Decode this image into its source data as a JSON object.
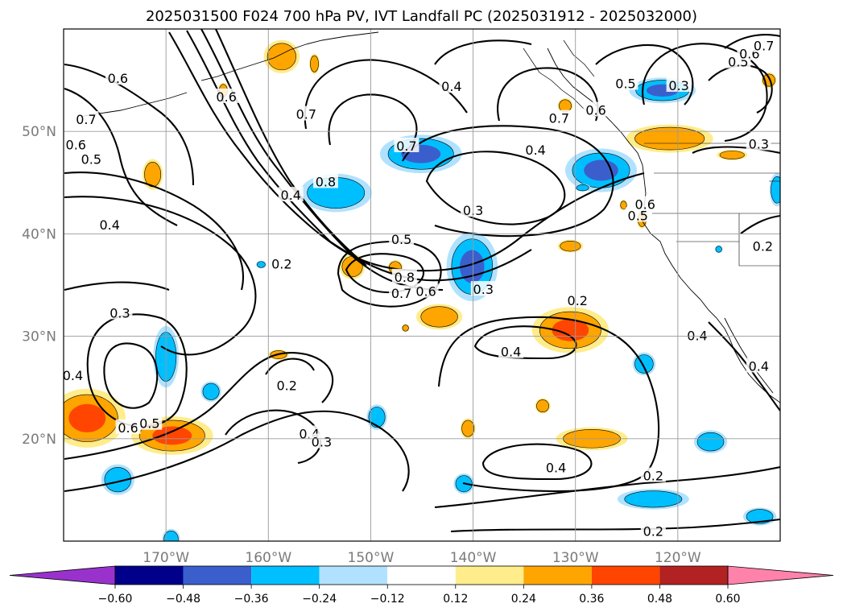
{
  "title": "2025031500 F024 700 hPa PV, IVT Landfall PC (2025031912 - 2025032000)",
  "chart_data": {
    "type": "contour map",
    "title": "2025031500 F024 700 hPa PV, IVT Landfall PC (2025031912 - 2025032000)",
    "lon_range": [
      -180,
      -110
    ],
    "lat_range": [
      10,
      60
    ],
    "lon_ticks": [
      -170,
      -160,
      -150,
      -140,
      -130,
      -120
    ],
    "lon_tick_labels": [
      "170°W",
      "160°W",
      "150°W",
      "140°W",
      "130°W",
      "120°W"
    ],
    "lat_ticks": [
      20,
      30,
      40,
      50
    ],
    "lat_tick_labels": [
      "20°N",
      "30°N",
      "40°N",
      "50°N"
    ],
    "grid": true,
    "colorbar": {
      "orientation": "horizontal",
      "extend": "both",
      "levels": [
        -0.6,
        -0.48,
        -0.36,
        -0.24,
        -0.12,
        0.12,
        0.24,
        0.36,
        0.48,
        0.6
      ],
      "tick_labels": [
        "−0.60",
        "−0.48",
        "−0.36",
        "−0.24",
        "−0.12",
        "0.12",
        "0.24",
        "0.36",
        "0.48",
        "0.60"
      ],
      "colors": [
        "#9932cc",
        "#00008b",
        "#3a5fcd",
        "#00bfff",
        "#b0e2ff",
        "#ffffff",
        "#ffec8b",
        "#ffa500",
        "#ff4500",
        "#b22222",
        "#ff82ab"
      ]
    },
    "contour_labels": [
      {
        "text": "0.6",
        "lon": -174.7,
        "lat": 55.2
      },
      {
        "text": "0.7",
        "lon": -177.8,
        "lat": 51.2
      },
      {
        "text": "0.6",
        "lon": -178.8,
        "lat": 48.7
      },
      {
        "text": "0.5",
        "lon": -177.3,
        "lat": 47.3
      },
      {
        "text": "0.4",
        "lon": -175.5,
        "lat": 40.9
      },
      {
        "text": "0.3",
        "lon": -174.5,
        "lat": 32.3
      },
      {
        "text": "0.4",
        "lon": -179.1,
        "lat": 26.2
      },
      {
        "text": "0.6",
        "lon": -173.7,
        "lat": 21.1
      },
      {
        "text": "0.5",
        "lon": -171.6,
        "lat": 21.5
      },
      {
        "text": "0.6",
        "lon": -164.1,
        "lat": 53.4
      },
      {
        "text": "0.7",
        "lon": -156.3,
        "lat": 51.7
      },
      {
        "text": "0.4",
        "lon": -157.8,
        "lat": 43.8
      },
      {
        "text": "0.2",
        "lon": -158.7,
        "lat": 37.1
      },
      {
        "text": "0.8",
        "lon": -154.4,
        "lat": 45.1
      },
      {
        "text": "0.7",
        "lon": -146.5,
        "lat": 48.6
      },
      {
        "text": "0.5",
        "lon": -147.0,
        "lat": 39.5
      },
      {
        "text": "0.8",
        "lon": -146.7,
        "lat": 35.8
      },
      {
        "text": "0.7",
        "lon": -147.0,
        "lat": 34.2
      },
      {
        "text": "0.6",
        "lon": -144.6,
        "lat": 34.4
      },
      {
        "text": "0.4",
        "lon": -142.1,
        "lat": 54.4
      },
      {
        "text": "0.4",
        "lon": -133.9,
        "lat": 48.2
      },
      {
        "text": "0.3",
        "lon": -140.0,
        "lat": 42.3
      },
      {
        "text": "0.7",
        "lon": -131.6,
        "lat": 51.3
      },
      {
        "text": "0.5",
        "lon": -125.1,
        "lat": 54.7
      },
      {
        "text": "0.6",
        "lon": -128.0,
        "lat": 52.1
      },
      {
        "text": "0.3",
        "lon": -139.0,
        "lat": 34.6
      },
      {
        "text": "0.5",
        "lon": -123.9,
        "lat": 41.8
      },
      {
        "text": "0.6",
        "lon": -123.2,
        "lat": 42.9
      },
      {
        "text": "0.2",
        "lon": -129.8,
        "lat": 33.5
      },
      {
        "text": "0.4",
        "lon": -136.3,
        "lat": 28.5
      },
      {
        "text": "0.2",
        "lon": -158.2,
        "lat": 25.2
      },
      {
        "text": "0.4",
        "lon": -156.0,
        "lat": 20.5
      },
      {
        "text": "0.3",
        "lon": -154.8,
        "lat": 19.7
      },
      {
        "text": "0.4",
        "lon": -131.9,
        "lat": 17.2
      },
      {
        "text": "0.2",
        "lon": -122.4,
        "lat": 16.4
      },
      {
        "text": "0.2",
        "lon": -122.4,
        "lat": 11.0
      },
      {
        "text": "0.3",
        "lon": -119.9,
        "lat": 54.5
      },
      {
        "text": "0.3",
        "lon": -112.1,
        "lat": 48.8
      },
      {
        "text": "0.5",
        "lon": -114.1,
        "lat": 56.8
      },
      {
        "text": "0.6",
        "lon": -113.0,
        "lat": 57.6
      },
      {
        "text": "0.7",
        "lon": -111.6,
        "lat": 58.4
      },
      {
        "text": "0.2",
        "lon": -111.7,
        "lat": 38.8
      },
      {
        "text": "0.4",
        "lon": -118.1,
        "lat": 30.1
      },
      {
        "text": "0.4",
        "lon": -112.1,
        "lat": 27.1
      }
    ],
    "shaded_features": [
      {
        "sign": "positive",
        "level": 0.36,
        "lon": -177.7,
        "lat": 22.0,
        "rlon": 3.0,
        "rlat": 2.3
      },
      {
        "sign": "positive",
        "level": 0.36,
        "lon": -169.4,
        "lat": 20.3,
        "rlon": 3.2,
        "rlat": 1.5
      },
      {
        "sign": "positive",
        "level": 0.36,
        "lon": -130.5,
        "lat": 30.6,
        "rlon": 3.0,
        "rlat": 1.8
      },
      {
        "sign": "positive",
        "level": 0.24,
        "lon": -158.7,
        "lat": 57.3,
        "rlon": 1.4,
        "rlat": 1.3
      },
      {
        "sign": "positive",
        "level": 0.24,
        "lon": -151.8,
        "lat": 36.8,
        "rlon": 1.0,
        "rlat": 1.0
      },
      {
        "sign": "positive",
        "level": 0.24,
        "lon": -143.3,
        "lat": 31.9,
        "rlon": 1.8,
        "rlat": 1.0
      },
      {
        "sign": "positive",
        "level": 0.24,
        "lon": -128.4,
        "lat": 20.0,
        "rlon": 2.8,
        "rlat": 0.9
      },
      {
        "sign": "positive",
        "level": 0.24,
        "lon": -120.8,
        "lat": 49.3,
        "rlon": 3.4,
        "rlat": 1.1
      },
      {
        "sign": "positive",
        "level": 0.24,
        "lon": -130.5,
        "lat": 38.8,
        "rlon": 1.0,
        "rlat": 0.5
      },
      {
        "sign": "positive",
        "level": 0.24,
        "lon": -164.4,
        "lat": 54.0,
        "rlon": 0.4,
        "rlat": 0.6
      },
      {
        "sign": "positive",
        "level": 0.24,
        "lon": -140.5,
        "lat": 21.0,
        "rlon": 0.6,
        "rlat": 0.8
      },
      {
        "sign": "positive",
        "level": 0.24,
        "lon": -171.3,
        "lat": 45.8,
        "rlon": 0.8,
        "rlat": 1.2
      },
      {
        "sign": "positive",
        "level": 0.24,
        "lon": -159.0,
        "lat": 28.2,
        "rlon": 0.8,
        "rlat": 0.4
      },
      {
        "sign": "positive",
        "level": 0.24,
        "lon": -146.6,
        "lat": 30.8,
        "rlon": 0.3,
        "rlat": 0.3
      },
      {
        "sign": "positive",
        "level": 0.24,
        "lon": -147.6,
        "lat": 36.7,
        "rlon": 0.6,
        "rlat": 0.6
      },
      {
        "sign": "positive",
        "level": 0.24,
        "lon": -125.3,
        "lat": 42.8,
        "rlon": 0.3,
        "rlat": 0.4
      },
      {
        "sign": "positive",
        "level": 0.24,
        "lon": -114.7,
        "lat": 47.7,
        "rlon": 1.2,
        "rlat": 0.4
      },
      {
        "sign": "positive",
        "level": 0.24,
        "lon": -123.5,
        "lat": 41.4,
        "rlon": 0.4,
        "rlat": 0.7
      },
      {
        "sign": "positive",
        "level": 0.24,
        "lon": -133.2,
        "lat": 23.2,
        "rlon": 0.6,
        "rlat": 0.6
      },
      {
        "sign": "positive",
        "level": 0.24,
        "lon": -155.5,
        "lat": 56.6,
        "rlon": 0.4,
        "rlat": 0.8
      },
      {
        "sign": "positive",
        "level": 0.24,
        "lon": -111.1,
        "lat": 55.0,
        "rlon": 0.6,
        "rlat": 0.6
      },
      {
        "sign": "positive",
        "level": 0.24,
        "lon": -131.0,
        "lat": 52.5,
        "rlon": 0.6,
        "rlat": 0.6
      },
      {
        "sign": "negative",
        "level": -0.36,
        "lon": -140.1,
        "lat": 36.8,
        "rlon": 2.0,
        "rlat": 2.7
      },
      {
        "sign": "negative",
        "level": -0.36,
        "lon": -145.1,
        "lat": 47.8,
        "rlon": 3.2,
        "rlat": 1.5
      },
      {
        "sign": "negative",
        "level": -0.36,
        "lon": -127.5,
        "lat": 46.2,
        "rlon": 2.8,
        "rlat": 1.7
      },
      {
        "sign": "negative",
        "level": -0.36,
        "lon": -121.5,
        "lat": 54.0,
        "rlon": 2.6,
        "rlat": 1.0
      },
      {
        "sign": "negative",
        "level": -0.24,
        "lon": -153.4,
        "lat": 44.0,
        "rlon": 2.8,
        "rlat": 1.5
      },
      {
        "sign": "negative",
        "level": -0.24,
        "lon": -170.0,
        "lat": 28.0,
        "rlon": 1.0,
        "rlat": 2.4
      },
      {
        "sign": "negative",
        "level": -0.24,
        "lon": -165.6,
        "lat": 24.6,
        "rlon": 0.8,
        "rlat": 0.8
      },
      {
        "sign": "negative",
        "level": -0.24,
        "lon": -174.7,
        "lat": 16.0,
        "rlon": 1.3,
        "rlat": 1.2
      },
      {
        "sign": "negative",
        "level": -0.24,
        "lon": -149.4,
        "lat": 22.1,
        "rlon": 0.8,
        "rlat": 1.0
      },
      {
        "sign": "negative",
        "level": -0.24,
        "lon": -140.9,
        "lat": 15.6,
        "rlon": 0.8,
        "rlat": 0.8
      },
      {
        "sign": "negative",
        "level": -0.24,
        "lon": -123.3,
        "lat": 27.3,
        "rlon": 0.9,
        "rlat": 0.9
      },
      {
        "sign": "negative",
        "level": -0.24,
        "lon": -122.4,
        "lat": 14.1,
        "rlon": 2.8,
        "rlat": 0.8
      },
      {
        "sign": "negative",
        "level": -0.24,
        "lon": -116.8,
        "lat": 19.7,
        "rlon": 1.3,
        "rlat": 0.9
      },
      {
        "sign": "negative",
        "level": -0.24,
        "lon": -112.0,
        "lat": 12.4,
        "rlon": 1.3,
        "rlat": 0.7
      },
      {
        "sign": "negative",
        "level": -0.24,
        "lon": -110.3,
        "lat": 44.3,
        "rlon": 0.6,
        "rlat": 1.3
      },
      {
        "sign": "negative",
        "level": -0.24,
        "lon": -169.5,
        "lat": 10.2,
        "rlon": 0.7,
        "rlat": 0.8
      },
      {
        "sign": "negative",
        "level": -0.24,
        "lon": -160.7,
        "lat": 37.0,
        "rlon": 0.4,
        "rlat": 0.3
      },
      {
        "sign": "negative",
        "level": -0.24,
        "lon": -116.0,
        "lat": 38.5,
        "rlon": 0.3,
        "rlat": 0.3
      },
      {
        "sign": "negative",
        "level": -0.24,
        "lon": -129.3,
        "lat": 44.5,
        "rlon": 0.6,
        "rlat": 0.3
      }
    ]
  }
}
